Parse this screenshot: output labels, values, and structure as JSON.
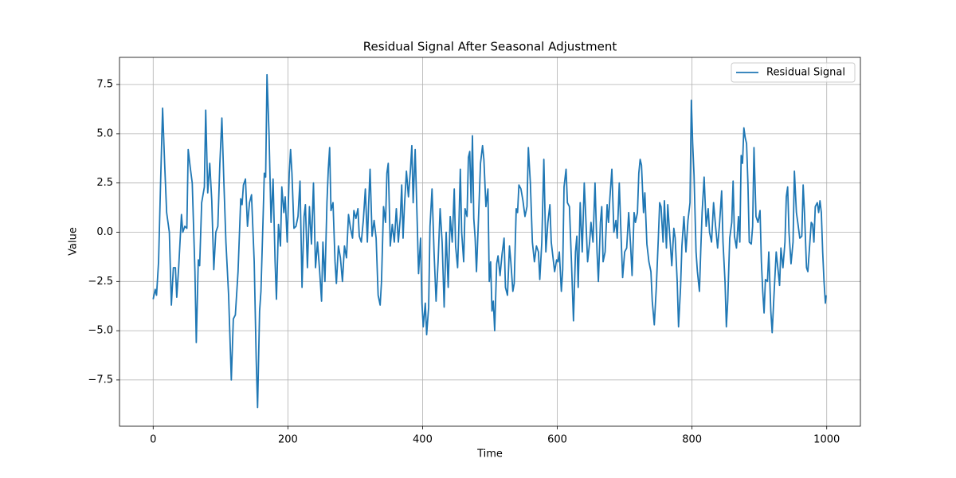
{
  "chart_data": {
    "type": "line",
    "title": "Residual Signal After Seasonal Adjustment",
    "xlabel": "Time",
    "ylabel": "Value",
    "x": [
      0,
      3,
      5,
      8,
      11,
      14,
      17,
      20,
      24,
      27,
      30,
      33,
      35,
      38,
      42,
      44,
      47,
      50,
      52,
      55,
      58,
      62,
      64,
      67,
      69,
      72,
      76,
      78,
      81,
      84,
      87,
      90,
      93,
      96,
      99,
      102,
      105,
      108,
      112,
      116,
      119,
      122,
      126,
      130,
      132,
      134,
      137,
      140,
      143,
      146,
      150,
      153,
      155,
      158,
      160,
      163,
      165,
      167,
      169,
      172,
      175,
      178,
      181,
      183,
      186,
      189,
      191,
      194,
      196,
      199,
      202,
      204,
      206,
      209,
      212,
      215,
      218,
      221,
      224,
      226,
      229,
      232,
      235,
      238,
      241,
      244,
      247,
      250,
      252,
      255,
      258,
      260,
      262,
      264,
      267,
      270,
      272,
      275,
      278,
      281,
      284,
      287,
      290,
      293,
      296,
      298,
      301,
      304,
      306,
      309,
      312,
      315,
      318,
      320,
      322,
      325,
      328,
      331,
      334,
      337,
      339,
      342,
      345,
      347,
      349,
      352,
      355,
      358,
      361,
      364,
      367,
      369,
      371,
      373,
      376,
      379,
      382,
      384,
      386,
      389,
      392,
      394,
      397,
      399,
      401,
      404,
      406,
      409,
      411,
      414,
      417,
      420,
      423,
      426,
      429,
      432,
      435,
      438,
      441,
      444,
      447,
      449,
      452,
      454,
      456,
      458,
      461,
      463,
      466,
      468,
      470,
      472,
      474,
      476,
      478,
      480,
      483,
      486,
      489,
      491,
      494,
      497,
      499,
      501,
      503,
      505,
      507,
      510,
      512,
      515,
      518,
      521,
      523,
      526,
      529,
      531,
      534,
      536,
      539,
      541,
      543,
      546,
      549,
      552,
      555,
      557,
      560,
      563,
      566,
      569,
      572,
      574,
      577,
      580,
      583,
      586,
      589,
      591,
      594,
      596,
      599,
      601,
      603,
      606,
      608,
      610,
      613,
      615,
      618,
      621,
      624,
      627,
      629,
      631,
      634,
      637,
      640,
      642,
      645,
      648,
      650,
      653,
      656,
      659,
      661,
      664,
      666,
      668,
      671,
      674,
      676,
      678,
      681,
      684,
      687,
      689,
      692,
      695,
      697,
      700,
      703,
      706,
      709,
      711,
      714,
      716,
      719,
      721,
      723,
      725,
      728,
      730,
      733,
      736,
      739,
      741,
      744,
      747,
      750,
      752,
      754,
      757,
      759,
      762,
      764,
      767,
      770,
      773,
      775,
      778,
      780,
      783,
      785,
      788,
      791,
      794,
      797,
      799,
      801,
      803,
      806,
      808,
      811,
      813,
      815,
      818,
      821,
      824,
      826,
      829,
      832,
      835,
      838,
      841,
      844,
      846,
      849,
      851,
      853,
      856,
      859,
      861,
      863,
      866,
      869,
      871,
      873,
      875,
      877,
      879,
      881,
      883,
      885,
      888,
      890,
      892,
      895,
      898,
      901,
      903,
      905,
      907,
      909,
      912,
      914,
      917,
      919,
      922,
      925,
      928,
      930,
      932,
      935,
      938,
      940,
      942,
      944,
      947,
      950,
      952,
      955,
      957,
      960,
      963,
      965,
      967,
      970,
      972,
      975,
      977,
      979,
      981,
      983,
      986,
      988,
      990,
      992,
      994,
      996,
      998,
      999
    ],
    "series": [
      {
        "name": "Residual Signal",
        "color": "#1f77b4",
        "values": [
          -3.4,
          -2.9,
          -3.2,
          -1.5,
          2.5,
          6.3,
          3.5,
          1.0,
          0,
          -3.7,
          -1.8,
          -1.8,
          -3.3,
          -1.7,
          0.9,
          0.0,
          0.3,
          0.2,
          4.2,
          3.3,
          2.5,
          -2.0,
          -5.6,
          -1.4,
          -1.7,
          1.5,
          2.3,
          6.2,
          2.0,
          3.5,
          1.6,
          -1.9,
          0.0,
          0.3,
          3.5,
          5.8,
          2.5,
          -0.5,
          -3.2,
          -7.5,
          -4.4,
          -4.2,
          -2.0,
          1.7,
          1.4,
          2.4,
          2.7,
          0.3,
          1.5,
          1.9,
          -1.5,
          -6.5,
          -8.9,
          -4.0,
          -3.0,
          0.5,
          3.0,
          2.8,
          8.0,
          5.0,
          0.5,
          2.7,
          -1.5,
          -3.4,
          0.4,
          -0.7,
          2.3,
          1.0,
          1.8,
          -0.5,
          3.0,
          4.2,
          3.0,
          0.2,
          0.3,
          0.8,
          2.6,
          -2.8,
          0.8,
          1.4,
          -1.8,
          1.3,
          -0.6,
          2.5,
          -1.8,
          -0.5,
          -1.9,
          -3.5,
          -0.5,
          -2.5,
          1.5,
          3.2,
          4.3,
          1.1,
          1.5,
          -1.5,
          -2.6,
          -0.7,
          -1.3,
          -2.5,
          -0.7,
          -1.3,
          0.9,
          0.2,
          -0.3,
          1.1,
          0.7,
          1.2,
          -0.2,
          -0.5,
          0.6,
          2.2,
          -0.5,
          1.5,
          3.2,
          -0.2,
          0.6,
          -0.3,
          -3.2,
          -3.7,
          -2.5,
          1.3,
          0.5,
          3.0,
          3.5,
          -0.7,
          0.4,
          -0.5,
          1.2,
          -0.5,
          0.8,
          2.4,
          -0.3,
          1.3,
          3.1,
          1.8,
          3.2,
          4.4,
          1.5,
          4.2,
          0.5,
          -2.1,
          -0.3,
          -3.6,
          -4.8,
          -3.6,
          -5.2,
          -3.8,
          0.3,
          2.2,
          -1.0,
          -3.5,
          -1.5,
          1.2,
          -0.5,
          -3.8,
          0.0,
          -2.8,
          0.8,
          -0.5,
          2.2,
          -0.7,
          -1.8,
          0.5,
          3.2,
          0.0,
          -1.5,
          1.2,
          0.8,
          3.8,
          4.1,
          1.5,
          4.9,
          0.7,
          -0.3,
          -2.0,
          0.7,
          3.5,
          4.4,
          3.7,
          1.3,
          2.2,
          -2.5,
          -1.5,
          -4.0,
          -3.5,
          -5.0,
          -1.6,
          -1.2,
          -2.2,
          -1.1,
          -0.3,
          -2.8,
          -3.2,
          -0.7,
          -1.5,
          -3.0,
          -2.6,
          1.2,
          1.0,
          2.4,
          2.2,
          1.6,
          0.8,
          1.3,
          4.3,
          2.5,
          -0.5,
          -1.5,
          -0.7,
          -1.0,
          -2.4,
          -0.5,
          3.7,
          -1.0,
          0.5,
          1.4,
          -0.5,
          -1.4,
          -2.0,
          -1.4,
          -1.5,
          -1.0,
          -3.0,
          -1.9,
          2.3,
          3.2,
          1.5,
          1.3,
          -1.5,
          -4.5,
          -1.0,
          -0.2,
          -2.8,
          1.5,
          -1.0,
          2.5,
          1.0,
          -1.5,
          -0.5,
          0.5,
          -0.5,
          2.5,
          -1.0,
          -2.5,
          0.5,
          1.3,
          -1.5,
          -1.0,
          1.4,
          0.5,
          1.7,
          3.2,
          0.0,
          0.6,
          -0.3,
          2.5,
          -0.5,
          -2.3,
          -1.0,
          -0.8,
          1.0,
          -0.8,
          -2.2,
          1.0,
          0.5,
          1.0,
          3.0,
          3.7,
          3.4,
          1.0,
          2.0,
          -0.6,
          -1.5,
          -2.0,
          -3.5,
          -4.7,
          -2.8,
          -0.3,
          1.5,
          1.3,
          -0.5,
          1.6,
          -0.8,
          1.4,
          -0.2,
          -1.7,
          0.2,
          -0.3,
          -2.5,
          -4.8,
          -2.8,
          -0.7,
          0.8,
          -1.0,
          0.6,
          1.5,
          6.7,
          4.5,
          2.9,
          -1.0,
          -2.0,
          -3.0,
          -0.9,
          1.0,
          2.8,
          0.3,
          1.2,
          0.0,
          -0.5,
          1.5,
          0.3,
          -0.8,
          0.5,
          2.1,
          -0.5,
          -2.5,
          -4.8,
          -3.5,
          -0.3,
          0.5,
          2.6,
          -0.2,
          -0.8,
          0.8,
          -0.5,
          3.9,
          3.5,
          5.3,
          4.8,
          4.5,
          2.5,
          -0.5,
          -0.6,
          0.3,
          4.3,
          0.8,
          0.5,
          1.1,
          -1.5,
          -3.0,
          -4.1,
          -2.4,
          -2.5,
          -1.0,
          -4.0,
          -5.1,
          -3.0,
          -1.0,
          -2.0,
          -2.7,
          -0.8,
          -1.8,
          -0.5,
          1.8,
          2.3,
          0.0,
          -1.6,
          -0.5,
          3.1,
          1.0,
          0.5,
          -0.3,
          -0.2,
          2.4,
          1.0,
          -1.8,
          -2.0,
          -0.5,
          0.5,
          0.4,
          -0.5,
          1.3,
          1.5,
          1.0,
          1.6,
          1.0,
          -1.0,
          -2.5,
          -3.6,
          -3.2
        ]
      }
    ],
    "xlim": [
      -50,
      1050
    ],
    "ylim": [
      -9.85,
      8.88
    ],
    "xticks": [
      0,
      200,
      400,
      600,
      800,
      1000
    ],
    "yticks": [
      {
        "value": -7.5,
        "label": "−7.5"
      },
      {
        "value": -5,
        "label": "−5.0"
      },
      {
        "value": -2.5,
        "label": "−2.5"
      },
      {
        "value": 0,
        "label": "0.0"
      },
      {
        "value": 2.5,
        "label": "2.5"
      },
      {
        "value": 5,
        "label": "5.0"
      },
      {
        "value": 7.5,
        "label": "7.5"
      }
    ],
    "grid": true,
    "legend": "upper right"
  }
}
